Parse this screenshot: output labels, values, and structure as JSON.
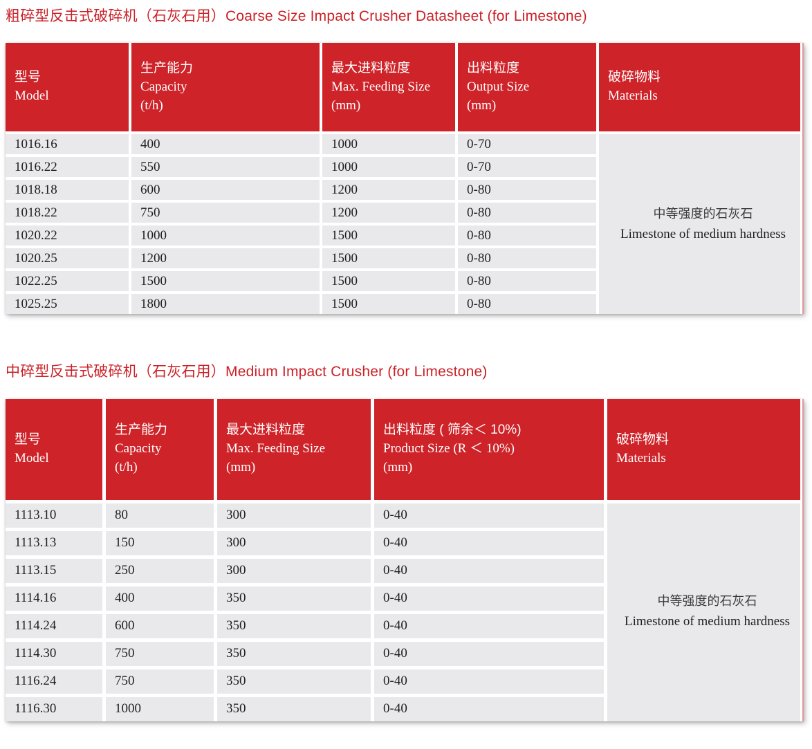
{
  "colors": {
    "accent_red": "#ce2329",
    "title_red": "#cb2127",
    "row_gray": "#e9e9eb",
    "data_text": "#1f1f1f"
  },
  "sections": [
    {
      "title": "粗碎型反击式破碎机（石灰石用）Coarse Size Impact Crusher Datasheet (for Limestone)",
      "columns": [
        {
          "zh": "型号",
          "en": "Model",
          "unit": ""
        },
        {
          "zh": "生产能力",
          "en": "Capacity",
          "unit": "(t/h)"
        },
        {
          "zh": "最大进料粒度",
          "en": "Max. Feeding Size",
          "unit": "(mm)"
        },
        {
          "zh": "出料粒度",
          "en": "Output Size",
          "unit": "(mm)"
        },
        {
          "zh": "破碎物料",
          "en": "Materials",
          "unit": ""
        }
      ],
      "rows": [
        [
          "1016.16",
          "400",
          "1000",
          "0-70"
        ],
        [
          "1016.22",
          "550",
          "1000",
          "0-70"
        ],
        [
          "1018.18",
          "600",
          "1200",
          "0-80"
        ],
        [
          "1018.22",
          "750",
          "1200",
          "0-80"
        ],
        [
          "1020.22",
          "1000",
          "1500",
          "0-80"
        ],
        [
          "1020.25",
          "1200",
          "1500",
          "0-80"
        ],
        [
          "1022.25",
          "1500",
          "1500",
          "0-80"
        ],
        [
          "1025.25",
          "1800",
          "1500",
          "0-80"
        ]
      ],
      "materials": {
        "zh": "中等强度的石灰石",
        "en": "Limestone of medium hardness"
      }
    },
    {
      "title": "中碎型反击式破碎机（石灰石用）Medium Impact Crusher (for Limestone)",
      "columns": [
        {
          "zh": "型号",
          "en": "Model",
          "unit": ""
        },
        {
          "zh": "生产能力",
          "en": "Capacity",
          "unit": "(t/h)"
        },
        {
          "zh": "最大进料粒度",
          "en": "Max. Feeding Size",
          "unit": "(mm)"
        },
        {
          "zh": "出料粒度 ( 筛余＜ 10%)",
          "en": "Product Size (R ＜ 10%)",
          "unit": "(mm)"
        },
        {
          "zh": "破碎物料",
          "en": "Materials",
          "unit": ""
        }
      ],
      "rows": [
        [
          "1113.10",
          "80",
          "300",
          "0-40"
        ],
        [
          "1113.13",
          "150",
          "300",
          "0-40"
        ],
        [
          "1113.15",
          "250",
          "300",
          "0-40"
        ],
        [
          "1114.16",
          "400",
          "350",
          "0-40"
        ],
        [
          "1114.24",
          "600",
          "350",
          "0-40"
        ],
        [
          "1114.30",
          "750",
          "350",
          "0-40"
        ],
        [
          "1116.24",
          "750",
          "350",
          "0-40"
        ],
        [
          "1116.30",
          "1000",
          "350",
          "0-40"
        ]
      ],
      "materials": {
        "zh": "中等强度的石灰石",
        "en": "Limestone of medium hardness"
      }
    }
  ]
}
